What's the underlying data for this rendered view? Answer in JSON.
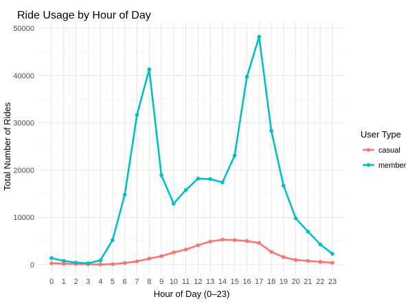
{
  "chart_data": {
    "type": "line",
    "title": "Ride Usage by Hour of Day",
    "xlabel": "Hour of Day (0–23)",
    "ylabel": "Total Number of Rides",
    "x": [
      0,
      1,
      2,
      3,
      4,
      5,
      6,
      7,
      8,
      9,
      10,
      11,
      12,
      13,
      14,
      15,
      16,
      17,
      18,
      19,
      20,
      21,
      22,
      23
    ],
    "xlim": [
      0,
      23
    ],
    "ylim": [
      0,
      50000
    ],
    "yticks": [
      0,
      10000,
      20000,
      30000,
      40000,
      50000
    ],
    "grid": true,
    "legend": {
      "title": "User Type",
      "position": "right"
    },
    "series": [
      {
        "name": "casual",
        "color": "#F8766D",
        "values": [
          300,
          200,
          150,
          80,
          50,
          120,
          350,
          700,
          1300,
          1800,
          2600,
          3200,
          4100,
          4900,
          5300,
          5200,
          5000,
          4600,
          2700,
          1600,
          1000,
          800,
          600,
          400
        ]
      },
      {
        "name": "member",
        "color": "#00BFC4",
        "values": [
          1400,
          800,
          450,
          300,
          900,
          5200,
          14800,
          31700,
          41300,
          18900,
          12900,
          15800,
          18200,
          18100,
          17400,
          23100,
          39700,
          48200,
          28300,
          16700,
          9800,
          7000,
          4300,
          2300
        ]
      }
    ]
  }
}
